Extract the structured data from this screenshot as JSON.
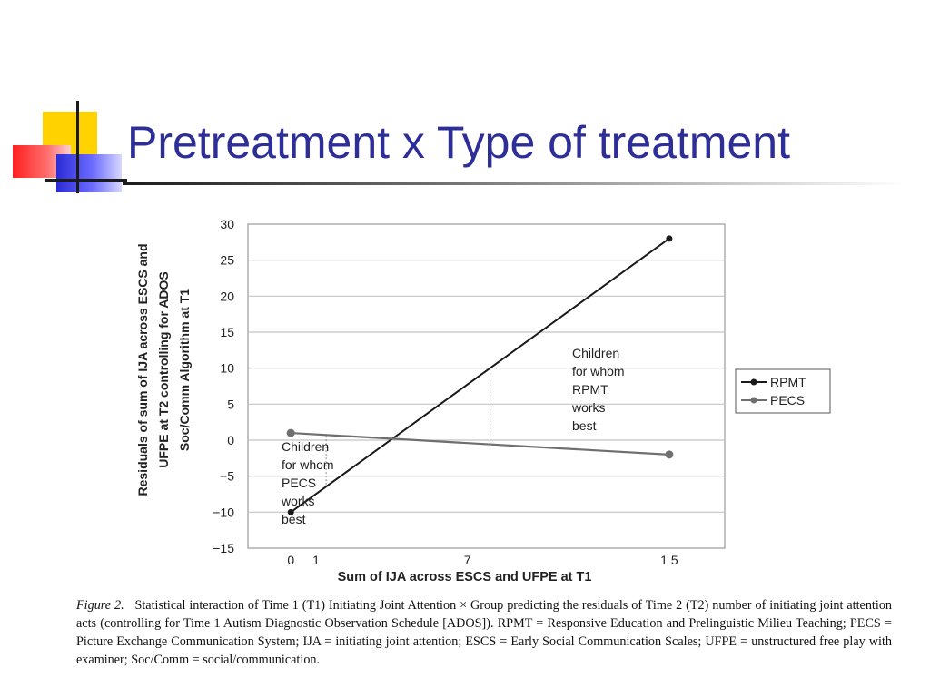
{
  "slide": {
    "title": "Pretreatment x Type of treatment"
  },
  "chart_data": {
    "type": "line",
    "xlabel": "Sum of IJA across ESCS and UFPE at T1",
    "ylabel": [
      "Residuals of sum of IJA across ESCS and",
      "UFPE at T2 controlling for ADOS",
      "Soc/Comm Algorithm at T1"
    ],
    "ylim": [
      -15,
      30
    ],
    "yticks": [
      30,
      25,
      20,
      15,
      10,
      5,
      0,
      -5,
      -10,
      -15
    ],
    "xticks": [
      "0",
      "1",
      "7",
      "1 5"
    ],
    "xtick_values": [
      0,
      1,
      7,
      15
    ],
    "grid": true,
    "legend": "right",
    "series": [
      {
        "name": "RPMT",
        "x": [
          0,
          15
        ],
        "values": [
          -10,
          28
        ],
        "color": "#1a1a1a"
      },
      {
        "name": "PECS",
        "x": [
          0,
          15
        ],
        "values": [
          1,
          -2
        ],
        "color": "#6f6f6f"
      }
    ],
    "guides": [
      {
        "x": 1.4,
        "y": [
          -6.2,
          0.8
        ]
      },
      {
        "x": 7.9,
        "y": [
          -0.6,
          10
        ]
      }
    ],
    "annotations": [
      {
        "lines": [
          "Children",
          "for whom",
          "RPMT",
          "works",
          "best"
        ]
      },
      {
        "lines": [
          "Children",
          "for whom",
          "PECS",
          "works",
          "best"
        ]
      }
    ]
  },
  "caption": {
    "figure_label": "Figure 2.",
    "text": "Statistical interaction of Time 1 (T1) Initiating Joint Attention × Group predicting the residuals of Time 2 (T2) number of initiating joint attention acts (controlling for Time 1 Autism Diagnostic Observation Schedule [ADOS]). RPMT = Responsive Education and Prelinguistic Milieu Teaching; PECS = Picture Exchange Communication System; IJA = initiating joint attention; ESCS = Early Social Communication Scales; UFPE = unstructured free play with examiner; Soc/Comm = social/communication."
  }
}
